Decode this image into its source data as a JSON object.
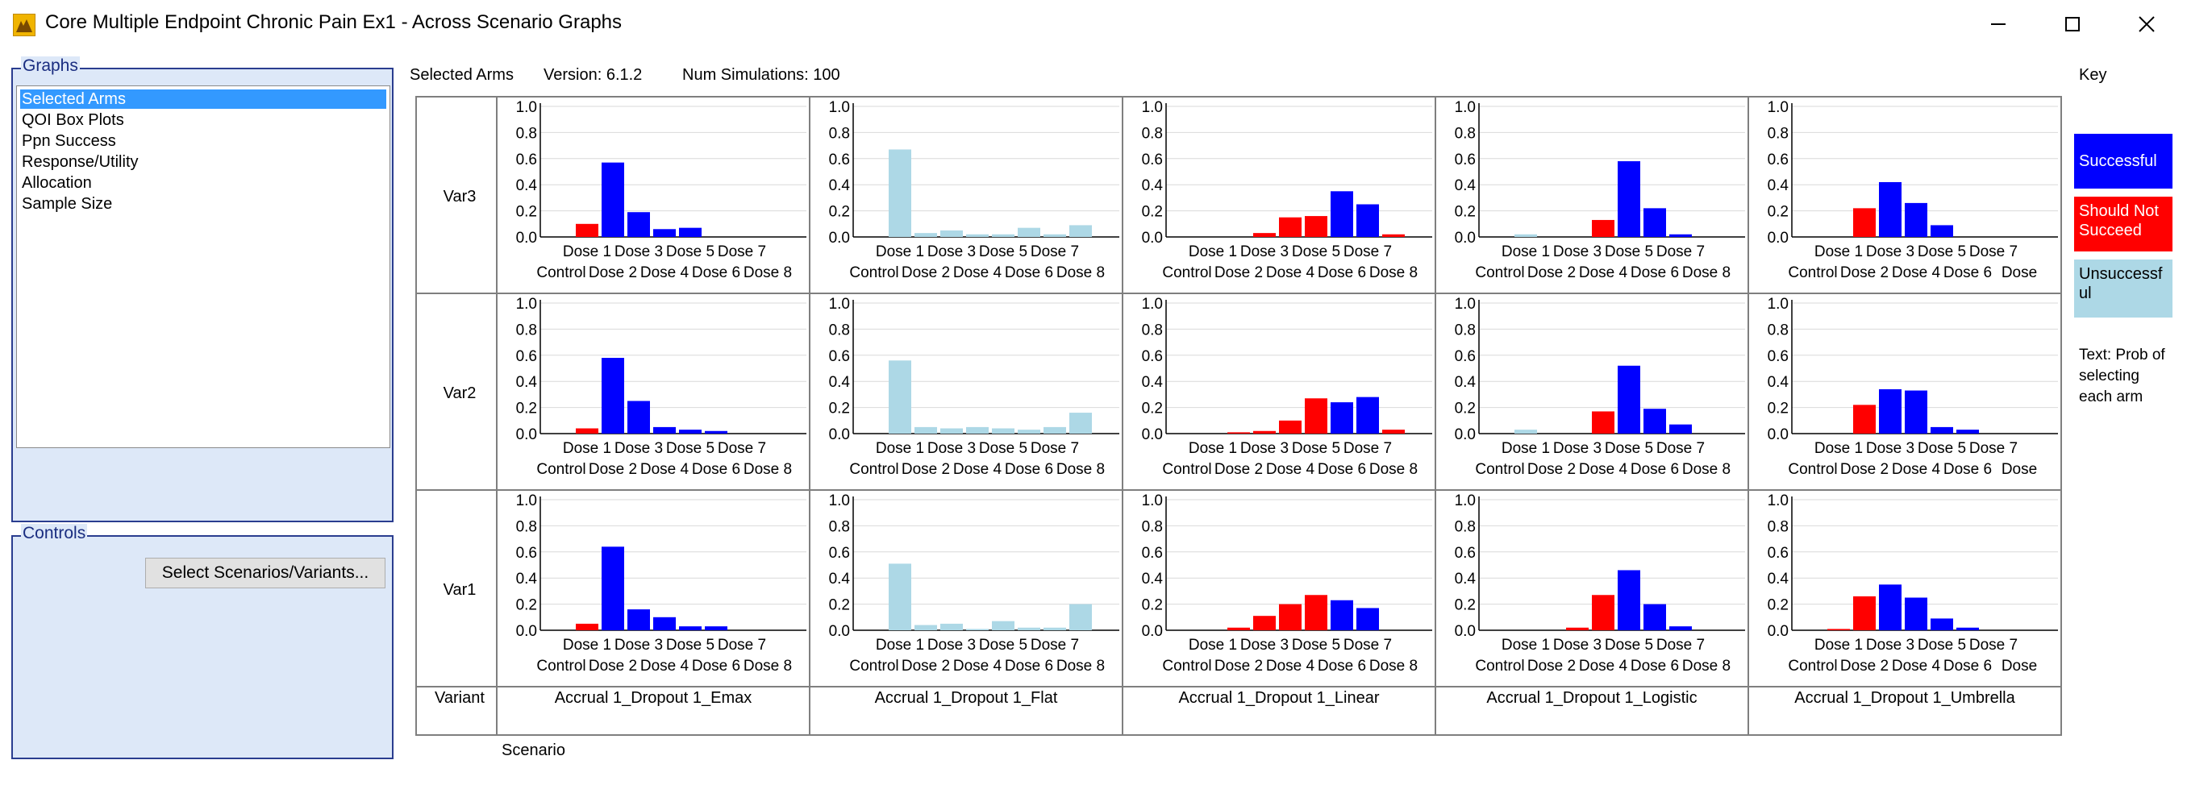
{
  "window": {
    "title": "Core Multiple Endpoint Chronic Pain Ex1 - Across Scenario Graphs",
    "minimize_icon": "minimize-icon",
    "maximize_icon": "maximize-icon",
    "close_icon": "close-icon"
  },
  "graphs_group": {
    "legend": "Graphs",
    "items": [
      {
        "label": "Selected Arms",
        "selected": true
      },
      {
        "label": "QOI Box Plots",
        "selected": false
      },
      {
        "label": "Ppn Success",
        "selected": false
      },
      {
        "label": "Response/Utility",
        "selected": false
      },
      {
        "label": "Allocation",
        "selected": false
      },
      {
        "label": "Sample Size",
        "selected": false
      }
    ]
  },
  "controls_group": {
    "legend": "Controls",
    "button_label": "Select Scenarios/Variants..."
  },
  "header": {
    "graph_name": "Selected Arms",
    "version": "Version: 6.1.2",
    "num_simulations": "Num Simulations: 100"
  },
  "colors": {
    "successful": "#0000ff",
    "should_not_succeed": "#ff0000",
    "unsuccessful": "#add8e6",
    "gray": "#a9a9a9"
  },
  "key": {
    "title": "Key",
    "successful": "Successful",
    "should_not_succeed": "Should Not Succeed",
    "unsuccessful": "Unsuccessful",
    "text_note": "Text: Prob of selecting each arm"
  },
  "grid": {
    "row_header": "Variant",
    "col_header": "Scenario",
    "variants": [
      "Var3",
      "Var2",
      "Var1"
    ],
    "scenarios": [
      "Accrual 1_Dropout 1_Emax",
      "Accrual 1_Dropout 1_Flat",
      "Accrual 1_Dropout 1_Linear",
      "Accrual 1_Dropout 1_Logistic",
      "Accrual 1_Dropout 1_Umbrella"
    ]
  },
  "chart_data": {
    "type": "bar",
    "y_ticks": [
      "0.0",
      "0.2",
      "0.4",
      "0.6",
      "0.8",
      "1.0"
    ],
    "ylim": [
      0,
      1
    ],
    "x_labels_top": [
      "Dose 1",
      "Dose 3",
      "Dose 5",
      "Dose 7"
    ],
    "x_labels_bottom": [
      "Control",
      "Dose 2",
      "Dose 4",
      "Dose 6",
      "Dose 8"
    ],
    "umbrella_labels_top": [
      "Dose 1",
      "Dose 3",
      "Dose 5",
      "Dose 7"
    ],
    "umbrella_labels_bottom": [
      "Control",
      "Dose 2",
      "Dose 4",
      "Dose 6",
      "Dose"
    ],
    "arms": [
      "Control",
      "Dose 1",
      "Dose 2",
      "Dose 3",
      "Dose 4",
      "Dose 5",
      "Dose 6",
      "Dose 7",
      "Dose 8"
    ],
    "panels": [
      {
        "variant": "Var3",
        "scenario": "Emax",
        "values": [
          0,
          0.1,
          0.57,
          0.19,
          0.06,
          0.07,
          0,
          0,
          0
        ],
        "colors": [
          "R",
          "R",
          "B",
          "B",
          "B",
          "B",
          "B",
          "B",
          "B"
        ]
      },
      {
        "variant": "Var3",
        "scenario": "Flat",
        "values": [
          0,
          0.67,
          0.03,
          0.05,
          0.02,
          0.02,
          0.07,
          0.02,
          0.09
        ],
        "colors": [
          "L",
          "L",
          "L",
          "L",
          "L",
          "L",
          "L",
          "L",
          "L"
        ]
      },
      {
        "variant": "Var3",
        "scenario": "Linear",
        "values": [
          0,
          0,
          0,
          0.03,
          0.15,
          0.16,
          0.35,
          0.25,
          0.02
        ],
        "colors": [
          "R",
          "R",
          "R",
          "R",
          "R",
          "R",
          "B",
          "B",
          "R"
        ]
      },
      {
        "variant": "Var3",
        "scenario": "Logistic",
        "values": [
          0,
          0.02,
          0,
          0,
          0.13,
          0.58,
          0.22,
          0.02,
          0
        ],
        "colors": [
          "L",
          "L",
          "R",
          "R",
          "R",
          "B",
          "B",
          "B",
          "B"
        ]
      },
      {
        "variant": "Var3",
        "scenario": "Umbrella",
        "values": [
          0,
          0,
          0.22,
          0.42,
          0.26,
          0.09,
          0,
          0,
          0
        ],
        "colors": [
          "R",
          "R",
          "R",
          "B",
          "B",
          "B",
          "B",
          "B",
          "B"
        ]
      },
      {
        "variant": "Var2",
        "scenario": "Emax",
        "values": [
          0,
          0.04,
          0.58,
          0.25,
          0.05,
          0.03,
          0.02,
          0,
          0
        ],
        "colors": [
          "R",
          "R",
          "B",
          "B",
          "B",
          "B",
          "B",
          "B",
          "B"
        ]
      },
      {
        "variant": "Var2",
        "scenario": "Flat",
        "values": [
          0,
          0.56,
          0.05,
          0.04,
          0.05,
          0.04,
          0.03,
          0.05,
          0.16
        ],
        "colors": [
          "L",
          "L",
          "L",
          "L",
          "L",
          "L",
          "L",
          "L",
          "L"
        ]
      },
      {
        "variant": "Var2",
        "scenario": "Linear",
        "values": [
          0,
          0,
          0.01,
          0.02,
          0.1,
          0.27,
          0.24,
          0.28,
          0.03
        ],
        "colors": [
          "R",
          "L",
          "R",
          "R",
          "R",
          "R",
          "B",
          "B",
          "R"
        ]
      },
      {
        "variant": "Var2",
        "scenario": "Logistic",
        "values": [
          0,
          0.03,
          0,
          0,
          0.17,
          0.52,
          0.19,
          0.07,
          0
        ],
        "colors": [
          "L",
          "L",
          "R",
          "R",
          "R",
          "B",
          "B",
          "B",
          "B"
        ]
      },
      {
        "variant": "Var2",
        "scenario": "Umbrella",
        "values": [
          0,
          0,
          0.22,
          0.34,
          0.33,
          0.05,
          0.03,
          0,
          0
        ],
        "colors": [
          "R",
          "R",
          "R",
          "B",
          "B",
          "B",
          "B",
          "B",
          "B"
        ]
      },
      {
        "variant": "Var1",
        "scenario": "Emax",
        "values": [
          0,
          0.05,
          0.64,
          0.16,
          0.1,
          0.03,
          0.03,
          0,
          0
        ],
        "colors": [
          "R",
          "R",
          "B",
          "B",
          "B",
          "B",
          "B",
          "B",
          "B"
        ]
      },
      {
        "variant": "Var1",
        "scenario": "Flat",
        "values": [
          0,
          0.51,
          0.04,
          0.05,
          0.01,
          0.07,
          0.02,
          0.02,
          0.2
        ],
        "colors": [
          "L",
          "L",
          "L",
          "L",
          "L",
          "L",
          "L",
          "L",
          "L"
        ]
      },
      {
        "variant": "Var1",
        "scenario": "Linear",
        "values": [
          0,
          0,
          0.02,
          0.11,
          0.2,
          0.27,
          0.23,
          0.17,
          0
        ],
        "colors": [
          "R",
          "R",
          "R",
          "R",
          "R",
          "R",
          "B",
          "B",
          "R"
        ]
      },
      {
        "variant": "Var1",
        "scenario": "Logistic",
        "values": [
          0,
          0,
          0,
          0.02,
          0.27,
          0.46,
          0.2,
          0.03,
          0
        ],
        "colors": [
          "R",
          "R",
          "R",
          "R",
          "R",
          "B",
          "B",
          "B",
          "B"
        ]
      },
      {
        "variant": "Var1",
        "scenario": "Umbrella",
        "values": [
          0,
          0.01,
          0.26,
          0.35,
          0.25,
          0.09,
          0.02,
          0,
          0
        ],
        "colors": [
          "R",
          "R",
          "R",
          "B",
          "B",
          "B",
          "B",
          "B",
          "B"
        ]
      }
    ]
  }
}
